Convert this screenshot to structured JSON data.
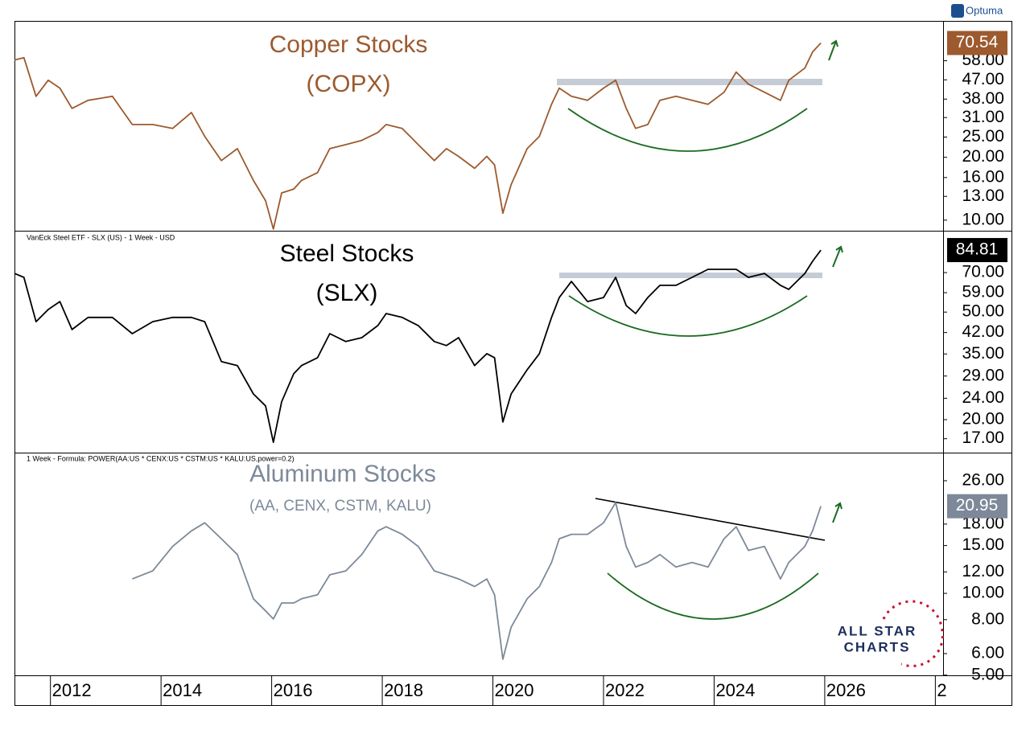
{
  "logo": "Optuma",
  "watermark": [
    "ALL STAR",
    "CHARTS"
  ],
  "chart_data": [
    {
      "type": "line",
      "title": "Copper Stocks",
      "subtitle": "(COPX)",
      "color": "#9c5a2e",
      "log_scale": true,
      "xlim": [
        2011.35,
        2028.14
      ],
      "ylim": [
        8.9,
        90
      ],
      "yticks": [
        {
          "value": 10,
          "label": "10.00"
        },
        {
          "value": 13,
          "label": "13.00"
        },
        {
          "value": 16,
          "label": "16.00"
        },
        {
          "value": 20,
          "label": "20.00"
        },
        {
          "value": 25,
          "label": "25.00"
        },
        {
          "value": 31,
          "label": "31.00"
        },
        {
          "value": 38,
          "label": "38.00"
        },
        {
          "value": 47,
          "label": "47.00"
        },
        {
          "value": 58,
          "label": "58.00"
        }
      ],
      "last_value": 70.54,
      "x": [
        2011.35,
        2011.52,
        2011.74,
        2011.96,
        2012.17,
        2012.39,
        2012.68,
        2013.12,
        2013.48,
        2013.85,
        2014.21,
        2014.55,
        2014.79,
        2015.09,
        2015.38,
        2015.67,
        2015.89,
        2016.03,
        2016.18,
        2016.4,
        2016.54,
        2016.83,
        2017.05,
        2017.34,
        2017.63,
        2017.92,
        2018.07,
        2018.36,
        2018.65,
        2018.94,
        2019.16,
        2019.38,
        2019.67,
        2019.89,
        2020.03,
        2020.18,
        2020.33,
        2020.62,
        2020.84,
        2021.06,
        2021.2,
        2021.42,
        2021.71,
        2022.0,
        2022.22,
        2022.41,
        2022.58,
        2022.8,
        2023.02,
        2023.31,
        2023.6,
        2023.89,
        2024.18,
        2024.4,
        2024.62,
        2024.91,
        2025.2,
        2025.35,
        2025.64,
        2025.78,
        2025.93
      ],
      "values": [
        58.5,
        60.0,
        39.2,
        46.8,
        42.9,
        34.3,
        37.5,
        39.2,
        28.7,
        28.7,
        27.5,
        32.8,
        25.2,
        19.3,
        22.0,
        15.5,
        12.4,
        9.07,
        13.5,
        14.1,
        15.5,
        16.9,
        22.0,
        23.0,
        24.1,
        26.3,
        28.7,
        27.5,
        23.0,
        19.3,
        22.0,
        20.2,
        17.7,
        20.2,
        18.4,
        10.8,
        14.8,
        22.0,
        25.2,
        35.9,
        42.9,
        39.2,
        37.5,
        42.9,
        46.8,
        34.3,
        27.5,
        28.7,
        37.5,
        39.2,
        37.5,
        35.9,
        41.0,
        51.2,
        44.8,
        41.0,
        37.5,
        46.8,
        53.5,
        63.9,
        70.54
      ]
    },
    {
      "type": "line",
      "header": "VanEck Steel ETF - SLX (US) - 1 Week - USD",
      "title": "Steel Stocks",
      "subtitle": "(SLX)",
      "color": "#000000",
      "log_scale": true,
      "xlim": [
        2011.35,
        2028.14
      ],
      "ylim": [
        15.1,
        100
      ],
      "yticks": [
        {
          "value": 17,
          "label": "17.00"
        },
        {
          "value": 20,
          "label": "20.00"
        },
        {
          "value": 24,
          "label": "24.00"
        },
        {
          "value": 29,
          "label": "29.00"
        },
        {
          "value": 35,
          "label": "35.00"
        },
        {
          "value": 42,
          "label": "42.00"
        },
        {
          "value": 50,
          "label": "50.00"
        },
        {
          "value": 59,
          "label": "59.00"
        },
        {
          "value": 70,
          "label": "70.00"
        }
      ],
      "last_value": 84.81,
      "x": [
        2011.35,
        2011.52,
        2011.74,
        2011.96,
        2012.17,
        2012.39,
        2012.68,
        2013.12,
        2013.48,
        2013.85,
        2014.21,
        2014.55,
        2014.79,
        2015.09,
        2015.38,
        2015.67,
        2015.89,
        2016.03,
        2016.18,
        2016.4,
        2016.54,
        2016.83,
        2017.05,
        2017.34,
        2017.63,
        2017.92,
        2018.07,
        2018.36,
        2018.65,
        2018.94,
        2019.16,
        2019.38,
        2019.67,
        2019.89,
        2020.03,
        2020.18,
        2020.33,
        2020.62,
        2020.84,
        2021.06,
        2021.2,
        2021.42,
        2021.71,
        2022.0,
        2022.22,
        2022.41,
        2022.58,
        2022.8,
        2023.02,
        2023.31,
        2023.6,
        2023.89,
        2024.18,
        2024.4,
        2024.62,
        2024.91,
        2025.2,
        2025.35,
        2025.64,
        2025.78,
        2025.93
      ],
      "values": [
        69.5,
        67.2,
        46.1,
        51.1,
        54.7,
        43.1,
        47.8,
        47.8,
        41.6,
        46.1,
        47.8,
        47.8,
        46.1,
        32.8,
        31.7,
        24.9,
        22.5,
        16.5,
        23.3,
        29.6,
        31.7,
        33.9,
        41.6,
        38.9,
        40.2,
        44.6,
        49.4,
        47.8,
        44.6,
        38.9,
        37.6,
        40.2,
        31.7,
        35.1,
        33.9,
        19.6,
        24.9,
        30.6,
        35.1,
        47.8,
        56.6,
        64.9,
        54.7,
        56.6,
        67.2,
        52.9,
        49.4,
        56.6,
        62.8,
        62.8,
        67.2,
        72.0,
        72.0,
        72.0,
        67.2,
        69.5,
        62.8,
        60.7,
        69.5,
        77.1,
        84.81
      ]
    },
    {
      "type": "line",
      "header": "1 Week - Formula: POWER(AA:US * CENX:US * CSTM:US * KALU:US,power=0.2)",
      "title": "Aluminum Stocks",
      "subtitle": "(AA, CENX, CSTM, KALU)",
      "color": "#7d8999",
      "log_scale": true,
      "xlim": [
        2011.35,
        2028.14
      ],
      "ylim": [
        4.99,
        33
      ],
      "yticks": [
        {
          "value": 5,
          "label": "5.00"
        },
        {
          "value": 6,
          "label": "6.00"
        },
        {
          "value": 8,
          "label": "8.00"
        },
        {
          "value": 10,
          "label": "10.00"
        },
        {
          "value": 12,
          "label": "12.00"
        },
        {
          "value": 15,
          "label": "15.00"
        },
        {
          "value": 18,
          "label": "18.00"
        },
        {
          "value": 26,
          "label": "26.00"
        }
      ],
      "last_value": 20.95,
      "xticks": [
        2012,
        2014,
        2016,
        2018,
        2020,
        2022,
        2024,
        2026,
        {
          "value": 2028,
          "label": "2"
        }
      ],
      "x": [
        2011.35,
        2011.52,
        2011.74,
        2011.96,
        2012.17,
        2012.39,
        2012.68,
        2013.12,
        2013.48,
        2013.85,
        2014.21,
        2014.55,
        2014.79,
        2015.09,
        2015.38,
        2015.67,
        2015.89,
        2016.03,
        2016.18,
        2016.4,
        2016.54,
        2016.83,
        2017.05,
        2017.34,
        2017.63,
        2017.92,
        2018.07,
        2018.36,
        2018.65,
        2018.94,
        2019.16,
        2019.38,
        2019.67,
        2019.89,
        2020.03,
        2020.18,
        2020.33,
        2020.62,
        2020.84,
        2021.06,
        2021.2,
        2021.42,
        2021.71,
        2022.0,
        2022.22,
        2022.41,
        2022.58,
        2022.8,
        2023.02,
        2023.31,
        2023.6,
        2023.89,
        2024.18,
        2024.4,
        2024.62,
        2024.91,
        2025.2,
        2025.35,
        2025.64,
        2025.78,
        2025.93
      ],
      "values": [
        null,
        null,
        null,
        null,
        null,
        null,
        null,
        null,
        11.3,
        12.1,
        14.9,
        17.0,
        18.2,
        15.9,
        13.9,
        9.55,
        8.62,
        8.05,
        9.22,
        9.22,
        9.55,
        9.88,
        11.7,
        12.1,
        13.9,
        17.0,
        17.6,
        16.5,
        14.9,
        12.1,
        11.7,
        11.3,
        10.6,
        11.3,
        9.88,
        5.72,
        7.51,
        9.55,
        10.6,
        13.0,
        15.9,
        16.5,
        16.5,
        18.2,
        21.6,
        14.9,
        12.5,
        13.0,
        13.9,
        12.5,
        13.0,
        12.5,
        15.9,
        17.6,
        14.4,
        14.9,
        11.3,
        13.0,
        14.9,
        17.0,
        20.95
      ]
    }
  ]
}
